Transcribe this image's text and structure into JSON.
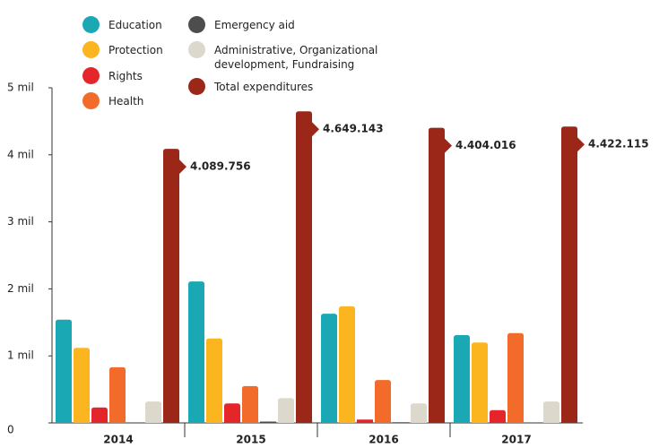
{
  "chart_data": {
    "type": "bar",
    "categories": [
      "2014",
      "2015",
      "2016",
      "2017"
    ],
    "series": [
      {
        "name": "Education",
        "color": "#1aa8b5",
        "values": [
          1540000,
          2110000,
          1630000,
          1310000
        ]
      },
      {
        "name": "Protection",
        "color": "#fbb51f",
        "values": [
          1120000,
          1260000,
          1740000,
          1200000
        ]
      },
      {
        "name": "Rights",
        "color": "#e4262b",
        "values": [
          230000,
          290000,
          50000,
          190000
        ]
      },
      {
        "name": "Health",
        "color": "#f26b2a",
        "values": [
          830000,
          550000,
          640000,
          1340000
        ]
      },
      {
        "name": "Emergency aid",
        "color": "#4d4d4d",
        "values": [
          0,
          20000,
          10000,
          0
        ]
      },
      {
        "name": "Administrative, Organizational development, Fundraising",
        "color": "#ddd8cc",
        "values": [
          320000,
          370000,
          290000,
          320000
        ]
      },
      {
        "name": "Total expenditures",
        "color": "#9b2718",
        "values": [
          4089756,
          4649143,
          4404016,
          4422115
        ],
        "value_labels": [
          "4.089.756",
          "4.649.143",
          "4.404.016",
          "4.422.115"
        ]
      }
    ],
    "ylim": [
      0,
      5000000
    ],
    "yticks": [
      0,
      {
        "value": 1000000,
        "label": "1 mil"
      },
      {
        "value": 2000000,
        "label": "2 mil"
      },
      {
        "value": 3000000,
        "label": "3 mil"
      },
      {
        "value": 4000000,
        "label": "4 mil"
      },
      {
        "value": 5000000,
        "label": "5 mil"
      }
    ],
    "grid": false
  }
}
